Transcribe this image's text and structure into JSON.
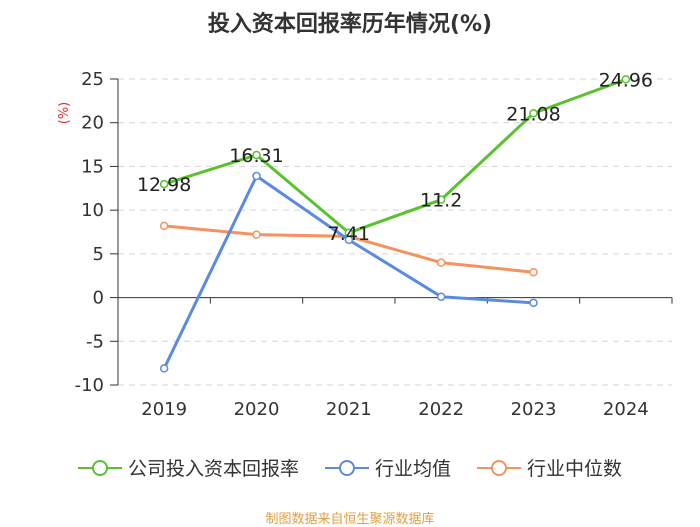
{
  "title": "投入资本回报率历年情况(%)",
  "source": "制图数据来自恒生聚源数据库",
  "chart_data": {
    "type": "line",
    "title": "投入资本回报率历年情况(%)",
    "ylabel": "(%)",
    "xlabel": "",
    "ylim": [
      -10,
      25
    ],
    "yticks": [
      25,
      20,
      15,
      10,
      5,
      0,
      -5,
      -10
    ],
    "categories": [
      "2019",
      "2020",
      "2021",
      "2022",
      "2023",
      "2024"
    ],
    "grid": true,
    "legend_position": "bottom",
    "series": [
      {
        "name": "公司投入资本回报率",
        "color": "#5ac22f",
        "values": [
          12.98,
          16.31,
          7.41,
          11.2,
          21.08,
          24.96
        ],
        "labels": [
          "12.98",
          "16.31",
          "7.41",
          "11.2",
          "21.08",
          "24.96"
        ]
      },
      {
        "name": "行业均值",
        "color": "#5b8ae0",
        "values": [
          -8.1,
          13.9,
          6.6,
          0.1,
          -0.6,
          null
        ]
      },
      {
        "name": "行业中位数",
        "color": "#f5925e",
        "values": [
          8.2,
          7.2,
          7.0,
          4.0,
          2.9,
          null
        ]
      }
    ]
  }
}
